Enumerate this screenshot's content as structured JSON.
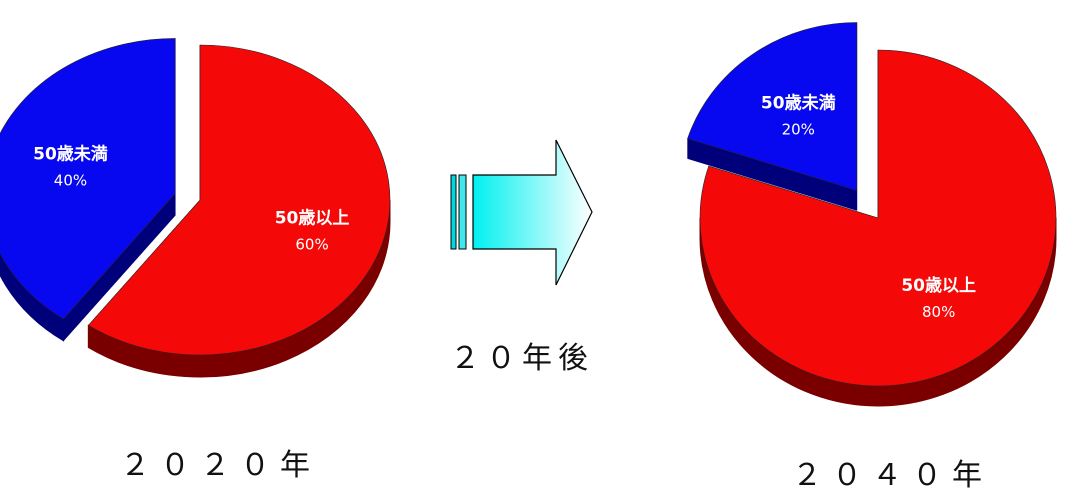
{
  "colors": {
    "under50": "#0808f0",
    "under50_side": "#00007a",
    "over50": "#f40808",
    "over50_side": "#7a0000",
    "arrow_start": "#00f0f0",
    "arrow_end": "#ffffff"
  },
  "chart_data": [
    {
      "type": "pie",
      "title": "２０２０年",
      "categories": [
        "50歳未満",
        "50歳以上"
      ],
      "values": [
        40,
        60
      ],
      "value_labels": [
        "40%",
        "60%"
      ]
    },
    {
      "type": "pie",
      "title": "２０４０年",
      "categories": [
        "50歳未満",
        "50歳以上"
      ],
      "values": [
        20,
        80
      ],
      "value_labels": [
        "20%",
        "80%"
      ]
    }
  ],
  "arrow": {
    "label": "２０年後",
    "icon": "right-arrow-icon"
  }
}
